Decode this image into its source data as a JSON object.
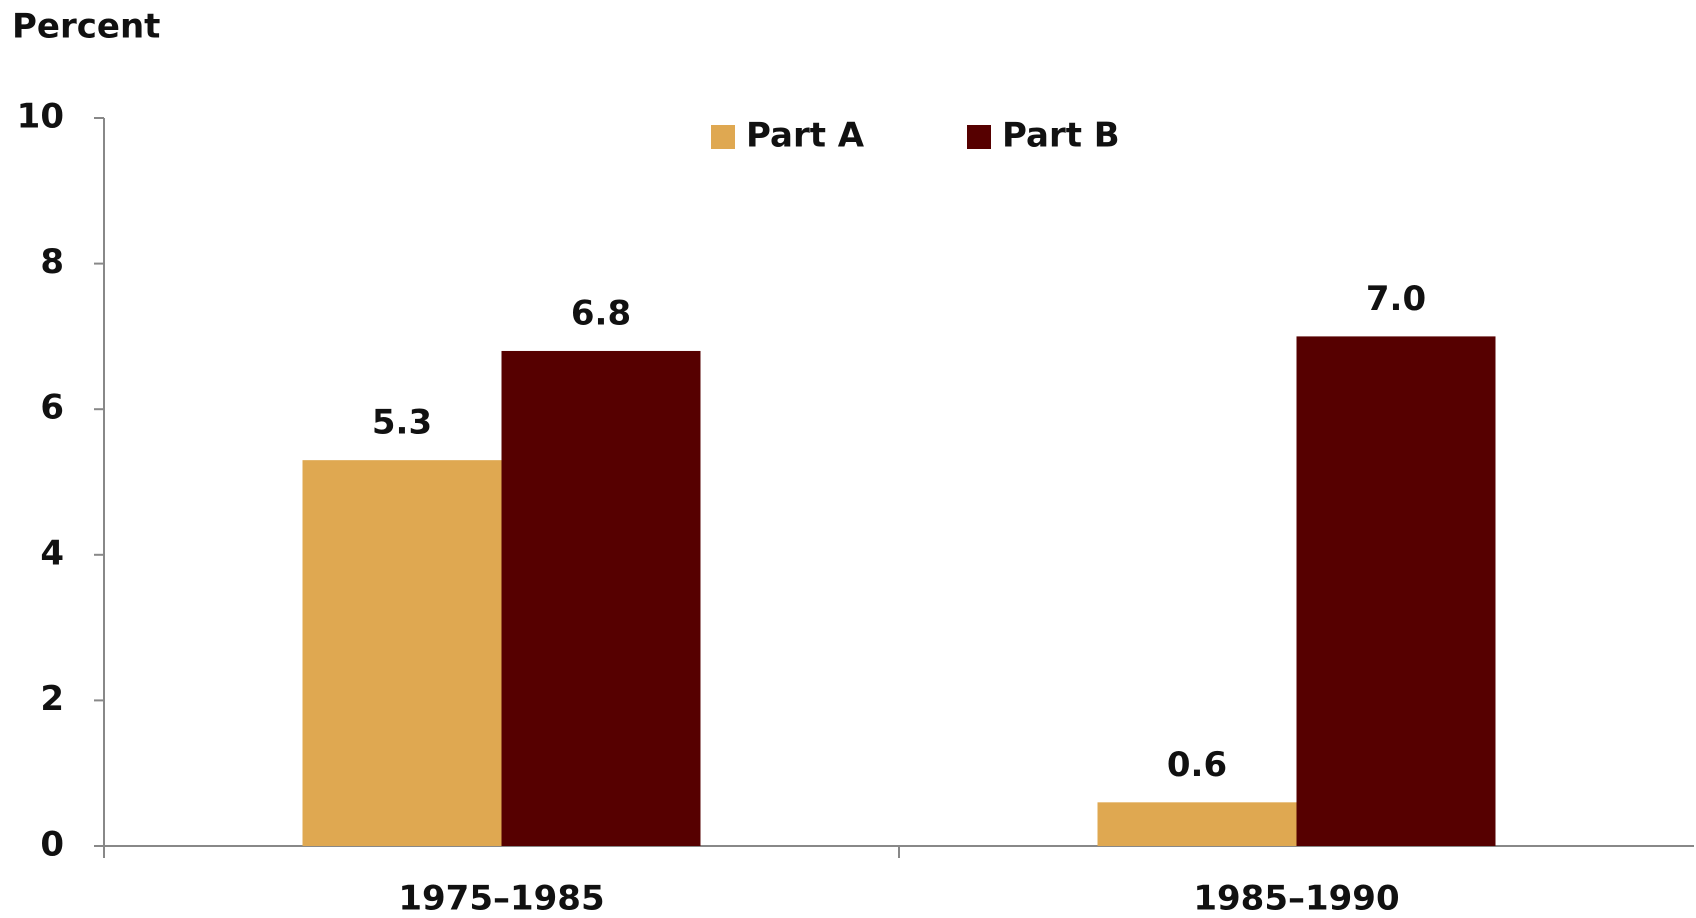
{
  "chart_data": {
    "type": "bar",
    "y_label": "Percent",
    "categories": [
      "1975–1985",
      "1985–1990"
    ],
    "series": [
      {
        "name": "Part A",
        "color": "#dfa851",
        "values": [
          5.3,
          0.6
        ],
        "value_labels": [
          "5.3",
          "0.6"
        ]
      },
      {
        "name": "Part B",
        "color": "#560000",
        "values": [
          6.8,
          7.0
        ],
        "value_labels": [
          "6.8",
          "7.0"
        ]
      }
    ],
    "ylim": [
      0,
      10
    ],
    "yticks": [
      0,
      2,
      4,
      6,
      8,
      10
    ],
    "grid": false,
    "legend": "top"
  }
}
